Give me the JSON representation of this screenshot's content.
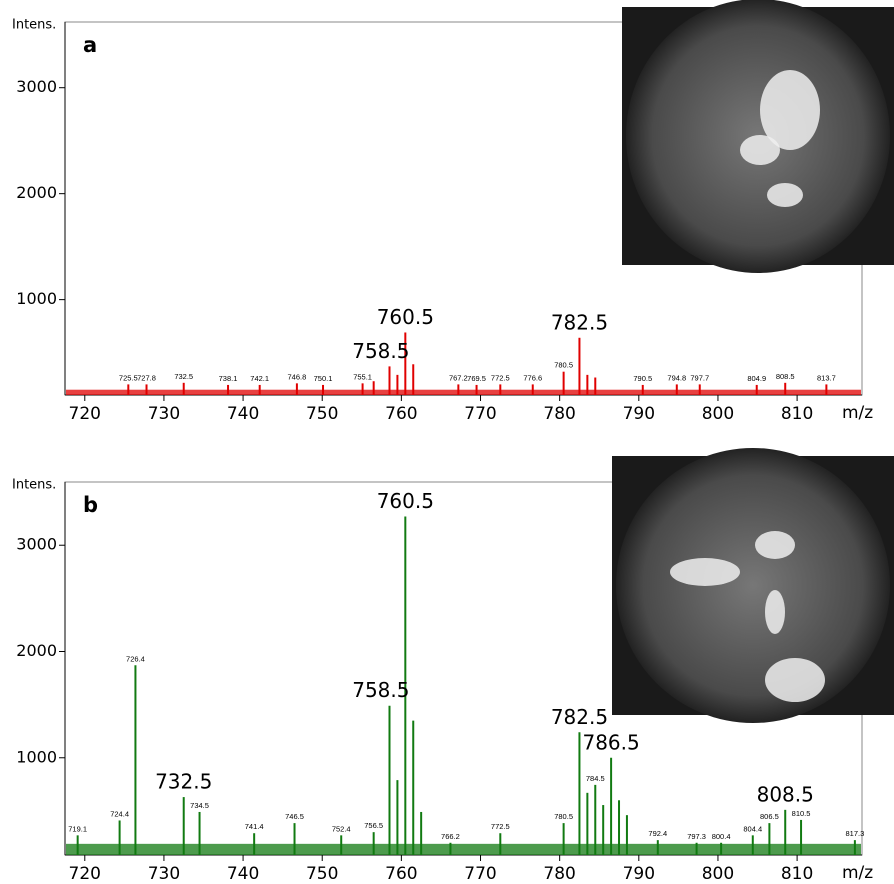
{
  "chart_data": [
    {
      "type": "stick",
      "panel": "a",
      "ylabel": "Intens.",
      "xlabel": "m/z",
      "color": "#e00000",
      "noise_level": 150,
      "xlim": [
        717.5,
        818.2
      ],
      "xticks": [
        720,
        730,
        740,
        750,
        760,
        770,
        780,
        790,
        800,
        810
      ],
      "ylim": [
        100,
        3620
      ],
      "yticks": [
        1000,
        2000,
        3000
      ],
      "x": [
        725.5,
        727.8,
        732.5,
        738.1,
        742.1,
        746.8,
        750.1,
        755.1,
        756.5,
        758.5,
        759.5,
        760.5,
        761.5,
        767.2,
        769.5,
        772.5,
        776.6,
        780.5,
        782.5,
        783.5,
        784.5,
        790.5,
        794.8,
        797.7,
        804.9,
        808.5,
        813.7
      ],
      "values": [
        200,
        200,
        215,
        195,
        195,
        210,
        195,
        210,
        230,
        370,
        290,
        690,
        390,
        200,
        195,
        200,
        200,
        320,
        640,
        290,
        265,
        195,
        200,
        200,
        195,
        215,
        200
      ],
      "major_peaks": [
        758.5,
        760.5,
        782.5
      ],
      "minor_peaks": [
        725.5,
        727.8,
        732.5,
        738.1,
        742.1,
        746.8,
        750.1,
        755.1,
        767.2,
        769.5,
        772.5,
        776.6,
        780.5,
        790.5,
        794.8,
        797.7,
        804.9,
        808.5,
        813.7
      ]
    },
    {
      "type": "stick",
      "panel": "b",
      "ylabel": "Intens.",
      "xlabel": "m/z",
      "color": "#117a11",
      "noise_level": 190,
      "xlim": [
        717.5,
        818.2
      ],
      "xticks": [
        720,
        730,
        740,
        750,
        760,
        770,
        780,
        790,
        800,
        810
      ],
      "ylim": [
        85,
        3595
      ],
      "yticks": [
        1000,
        2000,
        3000
      ],
      "x": [
        719.1,
        724.4,
        726.4,
        732.5,
        734.5,
        741.4,
        746.5,
        752.4,
        756.5,
        758.5,
        759.5,
        760.5,
        761.5,
        762.5,
        766.2,
        772.5,
        780.5,
        782.5,
        783.5,
        784.5,
        785.5,
        786.5,
        787.5,
        788.5,
        792.4,
        797.3,
        800.4,
        804.4,
        806.5,
        808.5,
        810.5,
        817.3
      ],
      "values": [
        270,
        410,
        1870,
        630,
        490,
        290,
        385,
        270,
        300,
        1490,
        790,
        3270,
        1350,
        490,
        200,
        290,
        385,
        1240,
        670,
        745,
        555,
        1000,
        600,
        460,
        225,
        200,
        200,
        270,
        385,
        510,
        415,
        225
      ],
      "major_peaks": [
        732.5,
        758.5,
        760.5,
        782.5,
        786.5,
        808.5
      ],
      "minor_peaks": [
        719.1,
        724.4,
        726.4,
        734.5,
        741.4,
        746.5,
        752.4,
        756.5,
        766.2,
        772.5,
        780.5,
        784.5,
        792.4,
        797.3,
        800.4,
        804.4,
        806.5,
        810.5,
        817.3
      ]
    }
  ]
}
